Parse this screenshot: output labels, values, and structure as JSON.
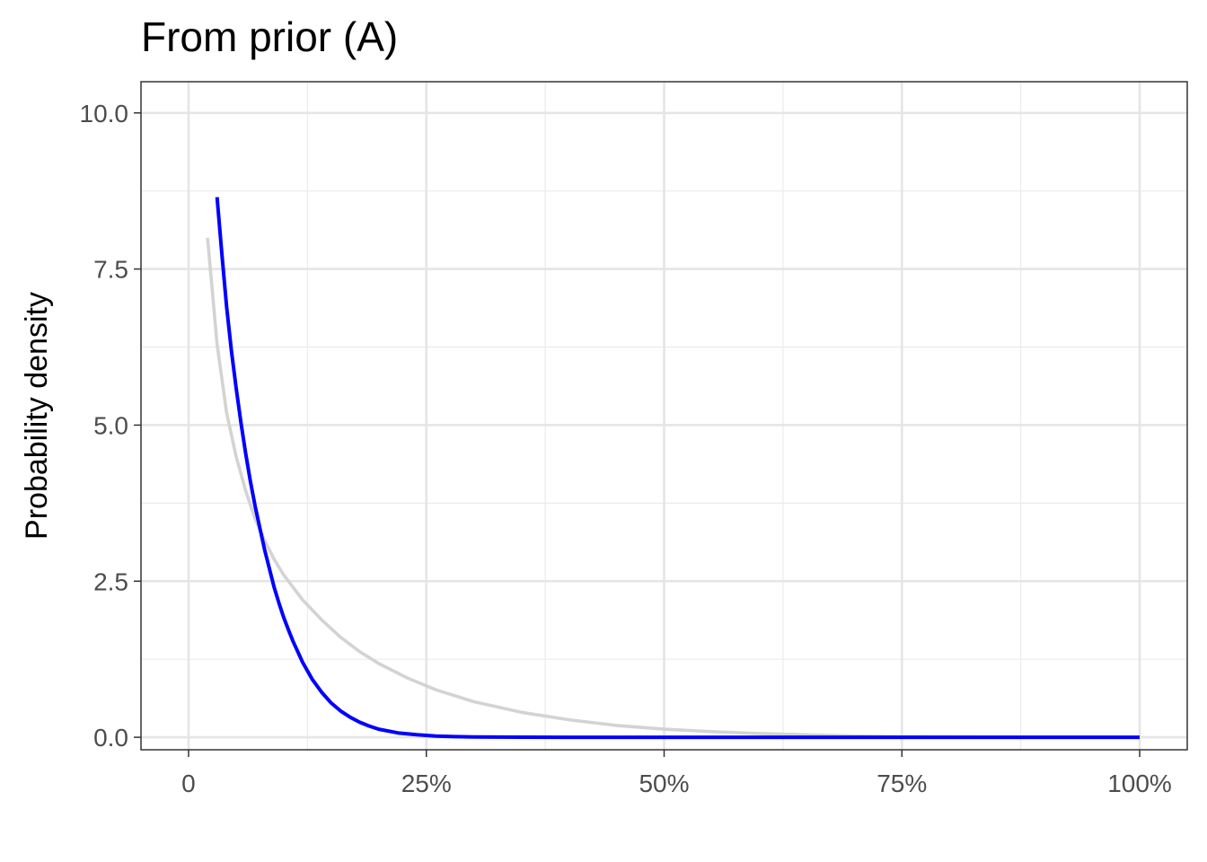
{
  "chart_data": {
    "type": "line",
    "title": "From prior (A)",
    "xlabel": "",
    "ylabel": "Probability density",
    "xlim": [
      -0.05,
      1.05
    ],
    "ylim": [
      -0.2,
      10.5
    ],
    "x_ticks": [
      0,
      0.25,
      0.5,
      0.75,
      1.0
    ],
    "x_tick_labels": [
      "0",
      "25%",
      "50%",
      "75%",
      "100%"
    ],
    "y_ticks": [
      0,
      2.5,
      5.0,
      7.5,
      10.0
    ],
    "y_tick_labels": [
      "0.0",
      "2.5",
      "5.0",
      "7.5",
      "10.0"
    ],
    "grid": true,
    "series": [
      {
        "color": "#d3d3d3",
        "x": [
          0.02,
          0.03,
          0.04,
          0.05,
          0.06,
          0.07,
          0.08,
          0.09,
          0.1,
          0.12,
          0.14,
          0.16,
          0.18,
          0.2,
          0.23,
          0.26,
          0.3,
          0.35,
          0.4,
          0.45,
          0.5,
          0.55,
          0.6,
          0.65,
          0.7,
          0.75,
          0.8,
          0.85,
          0.9,
          0.95,
          1.0
        ],
        "y": [
          8.0,
          6.3,
          5.2,
          4.5,
          3.95,
          3.5,
          3.15,
          2.85,
          2.6,
          2.2,
          1.88,
          1.6,
          1.37,
          1.18,
          0.95,
          0.76,
          0.57,
          0.4,
          0.28,
          0.19,
          0.13,
          0.09,
          0.06,
          0.04,
          0.02,
          0.01,
          0.005,
          0.002,
          0.001,
          0.0,
          0.0
        ]
      },
      {
        "color": "#0000ff",
        "x": [
          0.03,
          0.035,
          0.04,
          0.045,
          0.05,
          0.055,
          0.06,
          0.065,
          0.07,
          0.075,
          0.08,
          0.085,
          0.09,
          0.095,
          0.1,
          0.105,
          0.11,
          0.12,
          0.13,
          0.14,
          0.15,
          0.16,
          0.17,
          0.18,
          0.19,
          0.2,
          0.22,
          0.24,
          0.26,
          0.28,
          0.3,
          0.35,
          0.4,
          0.45,
          0.5,
          0.6,
          0.7,
          0.8,
          0.9,
          1.0
        ],
        "y": [
          8.65,
          7.75,
          6.9,
          6.2,
          5.6,
          5.05,
          4.55,
          4.1,
          3.7,
          3.35,
          3.0,
          2.7,
          2.4,
          2.15,
          1.92,
          1.72,
          1.53,
          1.2,
          0.93,
          0.72,
          0.55,
          0.42,
          0.32,
          0.24,
          0.18,
          0.13,
          0.07,
          0.04,
          0.02,
          0.01,
          0.005,
          0.001,
          0.0,
          0.0,
          0.0,
          0.0,
          0.0,
          0.0,
          0.0,
          0.0
        ]
      }
    ]
  }
}
